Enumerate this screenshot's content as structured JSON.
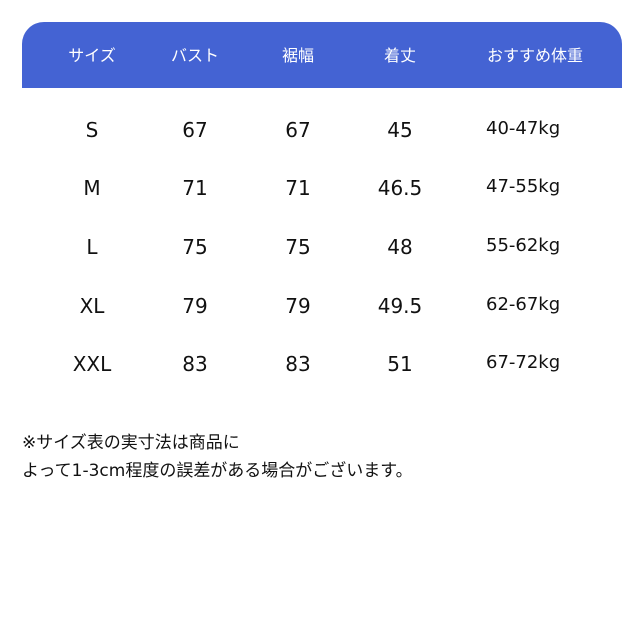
{
  "table": {
    "header_color": "#4463d3",
    "headers": [
      "サイズ",
      "バスト",
      "裾幅",
      "着丈",
      "おすすめ体重"
    ],
    "rows": [
      [
        "S",
        "67",
        "67",
        "45",
        "40-47kg"
      ],
      [
        "M",
        "71",
        "71",
        "46.5",
        "47-55kg"
      ],
      [
        "L",
        "75",
        "75",
        "48",
        "55-62kg"
      ],
      [
        "XL",
        "79",
        "79",
        "49.5",
        "62-67kg"
      ],
      [
        "XXL",
        "83",
        "83",
        "51",
        "67-72kg"
      ]
    ]
  },
  "note": {
    "line1": "※サイズ表の実寸法は商品に",
    "line2": "よって1-3cm程度の誤差がある場合がございます。"
  }
}
